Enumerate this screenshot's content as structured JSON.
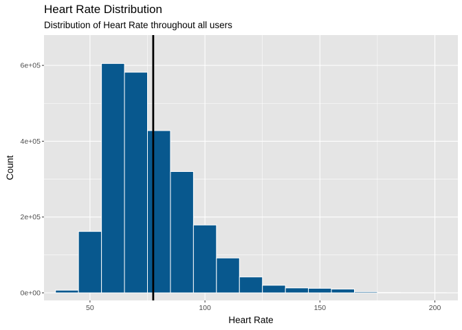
{
  "chart_data": {
    "type": "bar",
    "title": "Heart Rate Distribution",
    "subtitle": "Distribution of Heart Rate throughout all users",
    "xlabel": "Heart Rate",
    "ylabel": "Count",
    "xlim": [
      30,
      210
    ],
    "ylim": [
      -20000,
      680000
    ],
    "x_ticks": [
      50,
      100,
      150,
      200
    ],
    "x_tick_labels": [
      "50",
      "100",
      "150",
      "200"
    ],
    "y_ticks": [
      0,
      200000,
      400000,
      600000
    ],
    "y_tick_labels": [
      "0e+00",
      "2e+05",
      "4e+05",
      "6e+05"
    ],
    "bin_width": 10,
    "bins": [
      {
        "start": 35,
        "end": 45,
        "count": 7000
      },
      {
        "start": 45,
        "end": 55,
        "count": 162000
      },
      {
        "start": 55,
        "end": 65,
        "count": 605000
      },
      {
        "start": 65,
        "end": 75,
        "count": 582000
      },
      {
        "start": 75,
        "end": 85,
        "count": 428000
      },
      {
        "start": 85,
        "end": 95,
        "count": 320000
      },
      {
        "start": 95,
        "end": 105,
        "count": 179000
      },
      {
        "start": 105,
        "end": 115,
        "count": 92000
      },
      {
        "start": 115,
        "end": 125,
        "count": 42000
      },
      {
        "start": 125,
        "end": 135,
        "count": 20000
      },
      {
        "start": 135,
        "end": 145,
        "count": 13000
      },
      {
        "start": 145,
        "end": 155,
        "count": 12000
      },
      {
        "start": 155,
        "end": 165,
        "count": 10000
      },
      {
        "start": 165,
        "end": 175,
        "count": 3000
      },
      {
        "start": 175,
        "end": 185,
        "count": 1000
      },
      {
        "start": 185,
        "end": 195,
        "count": 500
      },
      {
        "start": 195,
        "end": 205,
        "count": 300
      }
    ],
    "mean_line": 77.5,
    "colors": {
      "bar_fill": "#08588e",
      "bar_outline": "#ffffff",
      "panel_background": "#e5e5e5",
      "grid": "#ffffff",
      "mean_line": "#000000"
    },
    "grid": true
  }
}
